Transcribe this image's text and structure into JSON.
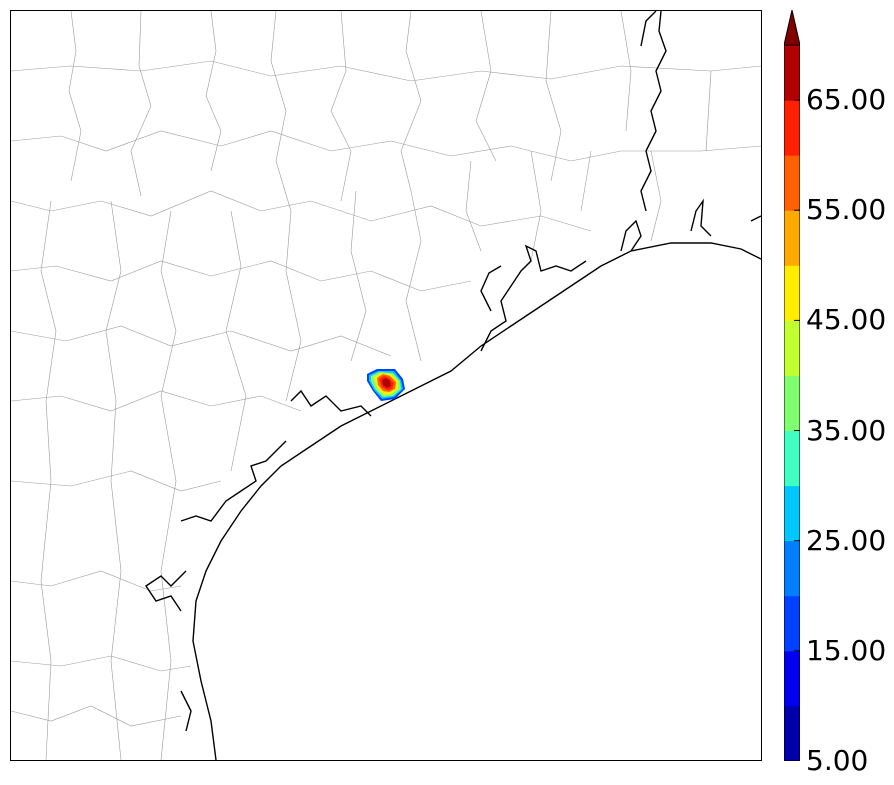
{
  "map": {
    "projection": "lambert",
    "region": "Texas Gulf Coast",
    "boundaries": [
      "coastline",
      "county-lines"
    ],
    "feature": {
      "description_id": "precip-cell",
      "max_level": 65.0,
      "min_level": 5.0
    }
  },
  "colorbar": {
    "tick_labels": [
      "5.00",
      "15.00",
      "25.00",
      "35.00",
      "45.00",
      "55.00",
      "65.00"
    ],
    "levels": [
      5,
      10,
      15,
      20,
      25,
      30,
      35,
      40,
      45,
      50,
      55,
      60,
      65,
      70
    ],
    "colors": [
      "#0000a8",
      "#0000f0",
      "#0040ff",
      "#0080ff",
      "#00c8ff",
      "#40ffc0",
      "#80ff70",
      "#c0ff30",
      "#ffee00",
      "#ffaa00",
      "#ff6000",
      "#ff2000",
      "#b00000",
      "#800000"
    ],
    "extend": "max"
  }
}
